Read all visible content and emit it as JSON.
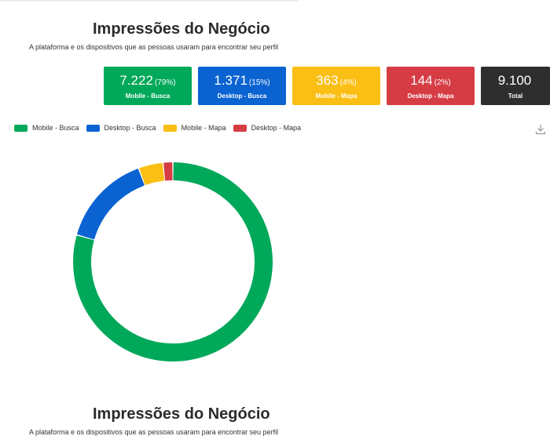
{
  "header": {
    "title": "Impressões do Negócio",
    "subtitle": "A plataforma e os dispositivos que as pessoas usaram para encontrar seu perfil"
  },
  "cards": [
    {
      "value": "7.222",
      "percent": "(79%)",
      "label": "Mobile - Busca",
      "color": "#00a85a"
    },
    {
      "value": "1.371",
      "percent": "(15%)",
      "label": "Desktop - Busca",
      "color": "#0a63d1"
    },
    {
      "value": "363",
      "percent": "(4%)",
      "label": "Mobile - Mapa",
      "color": "#fbbe14"
    },
    {
      "value": "144",
      "percent": "(2%)",
      "label": "Desktop - Mapa",
      "color": "#d63c44"
    },
    {
      "value": "9.100",
      "percent": "",
      "label": "Total",
      "color": "#2e2e2e"
    }
  ],
  "icons": {
    "download": "download-icon"
  },
  "chart_data": {
    "type": "pie",
    "style": "donut",
    "categories": [
      "Mobile - Busca",
      "Desktop - Busca",
      "Mobile - Mapa",
      "Desktop - Mapa"
    ],
    "values": [
      7222,
      1371,
      363,
      144
    ],
    "colors": [
      "#00a85a",
      "#0a63d1",
      "#fbbe14",
      "#d63c44"
    ],
    "legend_position": "top-left"
  },
  "footer_repeat": {
    "title": "Impressões do Negócio",
    "subtitle": "A plataforma e os dispositivos que as pessoas usaram para encontrar seu perfil"
  }
}
